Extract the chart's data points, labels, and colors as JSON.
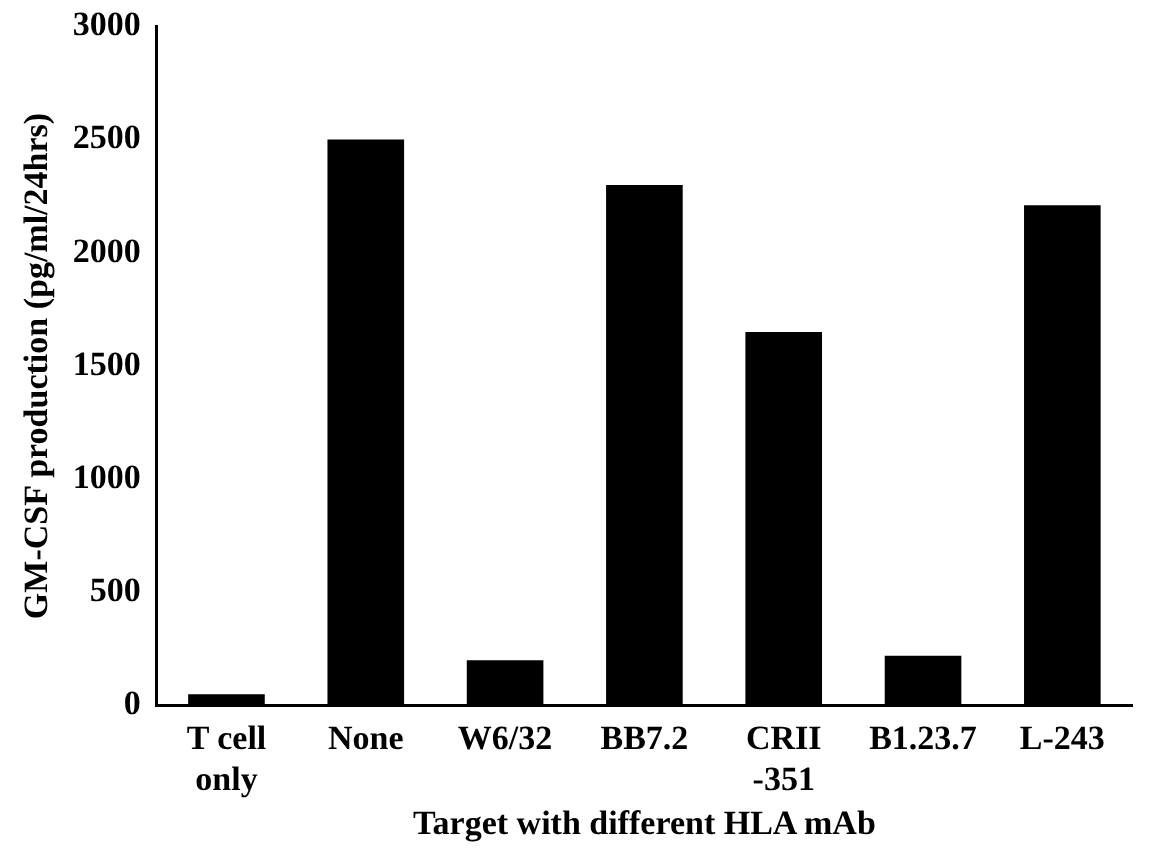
{
  "chart_data": {
    "type": "bar",
    "xlabel": "Target with different HLA mAb",
    "ylabel": "GM-CSF production (pg/ml/24hrs)",
    "categories": [
      "T cell\nonly",
      "None",
      "W6/32",
      "BB7.2",
      "CRII\n-351",
      "B1.23.7",
      "L-243"
    ],
    "values": [
      50,
      2500,
      200,
      2300,
      1650,
      220,
      2210
    ],
    "color": "#000000",
    "ylim": [
      0,
      3000
    ],
    "yticks": [
      0,
      500,
      1000,
      1500,
      2000,
      2500,
      3000
    ],
    "grid": false,
    "legend": false
  }
}
